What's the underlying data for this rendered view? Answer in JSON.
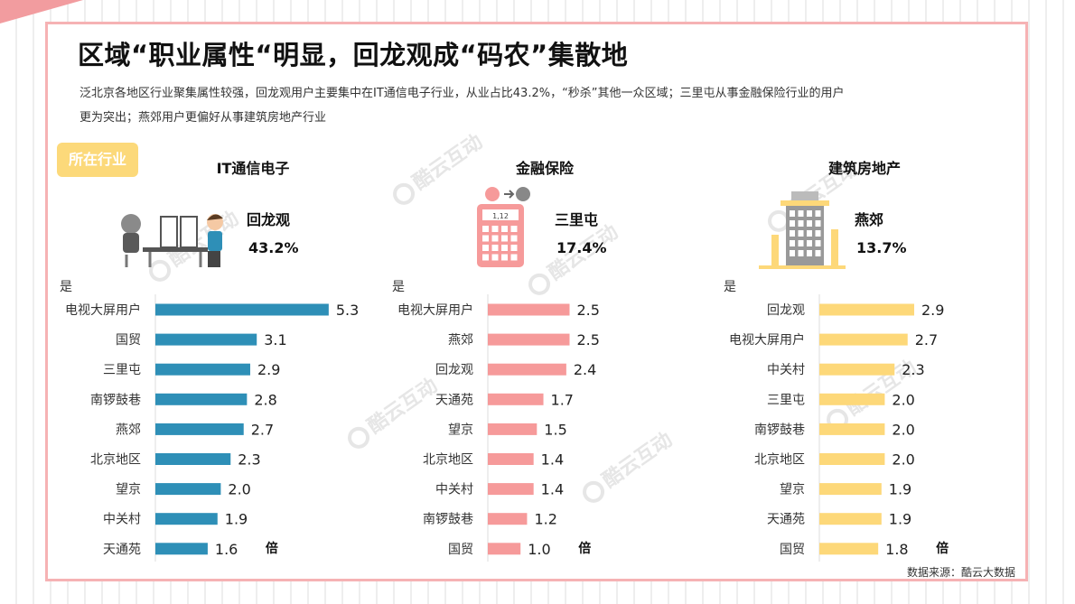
{
  "title": "区域“职业属性“明显，回龙观成“码农”集散地",
  "description_line1": "泛北京各地区行业聚集属性较强，回龙观用户主要集中在IT通信电子行业，从业占比43.2%，“秒杀”其他一众区域；三里屯从事金融保险行业的用户",
  "description_line2": "更为突出；燕郊用户更偏好从事建筑房地产行业",
  "tag_label": "所在行业",
  "source": "数据来源：酷云大数据",
  "watermark": "酷云互动",
  "calculator_display": "1,12",
  "chart_data": [
    {
      "type": "bar",
      "title": "IT通信电子",
      "highlight_area": "回龙观",
      "highlight_pct": "43.2%",
      "ylabel": "是",
      "unit_label": "倍",
      "color": "#2e8fb7",
      "icon": "robot-and-programmer-icon",
      "categories": [
        "电视大屏用户",
        "国贸",
        "三里屯",
        "南锣鼓巷",
        "燕郊",
        "北京地区",
        "望京",
        "中关村",
        "天通苑"
      ],
      "values": [
        5.3,
        3.1,
        2.9,
        2.8,
        2.7,
        2.3,
        2.0,
        1.9,
        1.6
      ],
      "value_labels": [
        "5.3",
        "3.1",
        "2.9",
        "2.8",
        "2.7",
        "2.3",
        "2.0",
        "1.9",
        "1.6"
      ]
    },
    {
      "type": "bar",
      "title": "金融保险",
      "highlight_area": "三里屯",
      "highlight_pct": "17.4%",
      "ylabel": "是",
      "unit_label": "倍",
      "color": "#f69a9a",
      "icon": "calculator-currency-icon",
      "categories": [
        "电视大屏用户",
        "燕郊",
        "回龙观",
        "天通苑",
        "望京",
        "北京地区",
        "中关村",
        "南锣鼓巷",
        "国贸"
      ],
      "values": [
        2.5,
        2.5,
        2.4,
        1.7,
        1.5,
        1.4,
        1.4,
        1.2,
        1.0
      ],
      "value_labels": [
        "2.5",
        "2.5",
        "2.4",
        "1.7",
        "1.5",
        "1.4",
        "1.4",
        "1.2",
        "1.0"
      ]
    },
    {
      "type": "bar",
      "title": "建筑房地产",
      "highlight_area": "燕郊",
      "highlight_pct": "13.7%",
      "ylabel": "是",
      "unit_label": "倍",
      "color": "#fdd879",
      "icon": "building-crane-icon",
      "categories": [
        "回龙观",
        "电视大屏用户",
        "中关村",
        "三里屯",
        "南锣鼓巷",
        "北京地区",
        "望京",
        "天通苑",
        "国贸"
      ],
      "values": [
        2.9,
        2.7,
        2.3,
        2.0,
        2.0,
        2.0,
        1.9,
        1.9,
        1.8
      ],
      "value_labels": [
        "2.9",
        "2.7",
        "2.3",
        "2.0",
        "2.0",
        "2.0",
        "1.9",
        "1.9",
        "1.8"
      ]
    }
  ]
}
